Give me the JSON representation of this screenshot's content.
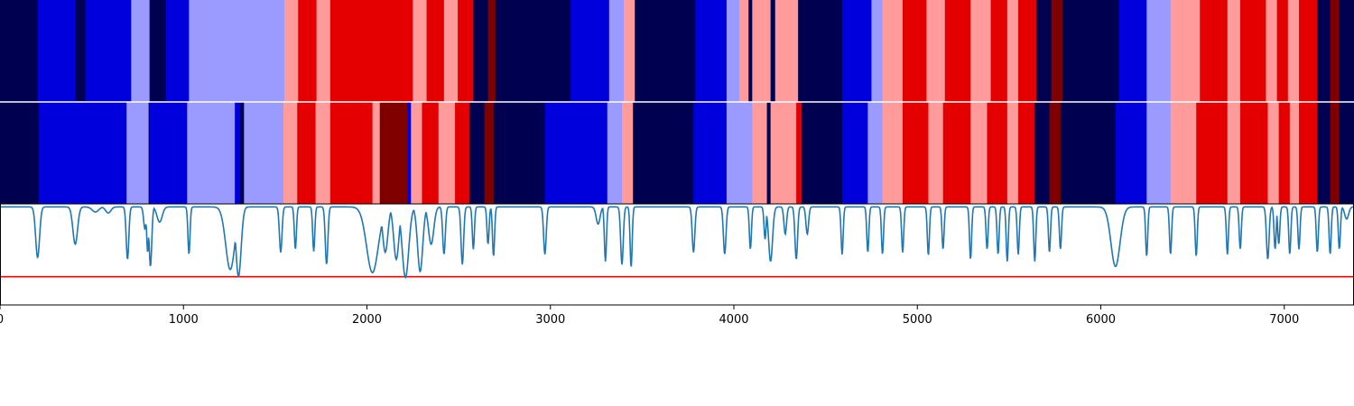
{
  "chart_data": {
    "type": "heatmap",
    "title": "",
    "xlabel": "",
    "ylabel": "",
    "xlim": [
      0,
      7380
    ],
    "x_ticks": [
      0,
      1000,
      2000,
      3000,
      4000,
      5000,
      6000,
      7000
    ],
    "x_tick_labels": [
      "0",
      "1000",
      "2000",
      "3000",
      "4000",
      "5000",
      "6000",
      "7000"
    ],
    "palette": {
      "0": "#000050",
      "1": "#0000dd",
      "2": "#9b9bff",
      "3": "#ff9b9b",
      "4": "#e40000",
      "5": "#800000"
    },
    "segment_rows": [
      {
        "name": "",
        "segments": [
          [
            0,
            205,
            0
          ],
          [
            205,
            410,
            1
          ],
          [
            410,
            465,
            0
          ],
          [
            465,
            715,
            1
          ],
          [
            715,
            815,
            2
          ],
          [
            815,
            905,
            0
          ],
          [
            905,
            1030,
            1
          ],
          [
            1030,
            1550,
            2
          ],
          [
            1550,
            1625,
            3
          ],
          [
            1625,
            1725,
            4
          ],
          [
            1725,
            1800,
            3
          ],
          [
            1800,
            2250,
            4
          ],
          [
            2250,
            2325,
            3
          ],
          [
            2325,
            2420,
            4
          ],
          [
            2420,
            2495,
            3
          ],
          [
            2495,
            2580,
            4
          ],
          [
            2580,
            2660,
            0
          ],
          [
            2660,
            2700,
            5
          ],
          [
            2700,
            3110,
            0
          ],
          [
            3110,
            3320,
            1
          ],
          [
            3320,
            3400,
            2
          ],
          [
            3400,
            3460,
            3
          ],
          [
            3460,
            3790,
            0
          ],
          [
            3790,
            3960,
            1
          ],
          [
            3960,
            4030,
            2
          ],
          [
            4030,
            4080,
            3
          ],
          [
            4080,
            4100,
            0
          ],
          [
            4100,
            4200,
            3
          ],
          [
            4200,
            4225,
            0
          ],
          [
            4225,
            4350,
            3
          ],
          [
            4350,
            4590,
            0
          ],
          [
            4590,
            4750,
            1
          ],
          [
            4750,
            4810,
            2
          ],
          [
            4810,
            4920,
            3
          ],
          [
            4920,
            5050,
            4
          ],
          [
            5050,
            5150,
            3
          ],
          [
            5150,
            5290,
            4
          ],
          [
            5290,
            5400,
            3
          ],
          [
            5400,
            5490,
            4
          ],
          [
            5490,
            5550,
            3
          ],
          [
            5550,
            5650,
            4
          ],
          [
            5650,
            5730,
            0
          ],
          [
            5730,
            5790,
            5
          ],
          [
            5790,
            6100,
            0
          ],
          [
            6100,
            6250,
            1
          ],
          [
            6250,
            6380,
            2
          ],
          [
            6380,
            6540,
            3
          ],
          [
            6540,
            6690,
            4
          ],
          [
            6690,
            6760,
            3
          ],
          [
            6760,
            6900,
            4
          ],
          [
            6900,
            6960,
            3
          ],
          [
            6960,
            7020,
            4
          ],
          [
            7020,
            7080,
            3
          ],
          [
            7080,
            7180,
            4
          ],
          [
            7180,
            7250,
            0
          ],
          [
            7250,
            7300,
            5
          ],
          [
            7300,
            7380,
            0
          ]
        ]
      },
      {
        "name": "",
        "segments": [
          [
            0,
            210,
            0
          ],
          [
            210,
            690,
            1
          ],
          [
            690,
            810,
            2
          ],
          [
            810,
            815,
            0
          ],
          [
            815,
            1020,
            1
          ],
          [
            1020,
            1280,
            2
          ],
          [
            1280,
            1310,
            1
          ],
          [
            1310,
            1330,
            0
          ],
          [
            1330,
            1545,
            2
          ],
          [
            1545,
            1620,
            3
          ],
          [
            1620,
            1720,
            4
          ],
          [
            1720,
            1800,
            3
          ],
          [
            1800,
            2030,
            4
          ],
          [
            2030,
            2070,
            3
          ],
          [
            2070,
            2220,
            5
          ],
          [
            2220,
            2240,
            1
          ],
          [
            2240,
            2300,
            3
          ],
          [
            2300,
            2390,
            4
          ],
          [
            2390,
            2480,
            3
          ],
          [
            2480,
            2560,
            4
          ],
          [
            2560,
            2640,
            0
          ],
          [
            2640,
            2690,
            5
          ],
          [
            2690,
            2970,
            0
          ],
          [
            2970,
            3310,
            1
          ],
          [
            3310,
            3390,
            2
          ],
          [
            3390,
            3450,
            3
          ],
          [
            3450,
            3780,
            0
          ],
          [
            3780,
            3960,
            1
          ],
          [
            3960,
            4100,
            2
          ],
          [
            4100,
            4180,
            3
          ],
          [
            4180,
            4200,
            0
          ],
          [
            4200,
            4340,
            3
          ],
          [
            4340,
            4370,
            4
          ],
          [
            4370,
            4590,
            0
          ],
          [
            4590,
            4730,
            1
          ],
          [
            4730,
            4810,
            2
          ],
          [
            4810,
            4920,
            3
          ],
          [
            4920,
            5060,
            4
          ],
          [
            5060,
            5140,
            3
          ],
          [
            5140,
            5290,
            4
          ],
          [
            5290,
            5380,
            3
          ],
          [
            5380,
            5490,
            4
          ],
          [
            5490,
            5550,
            3
          ],
          [
            5550,
            5640,
            4
          ],
          [
            5640,
            5720,
            0
          ],
          [
            5720,
            5780,
            5
          ],
          [
            5780,
            6080,
            0
          ],
          [
            6080,
            6250,
            1
          ],
          [
            6250,
            6380,
            2
          ],
          [
            6380,
            6520,
            3
          ],
          [
            6520,
            6690,
            4
          ],
          [
            6690,
            6760,
            3
          ],
          [
            6760,
            6910,
            4
          ],
          [
            6910,
            6970,
            3
          ],
          [
            6970,
            7030,
            4
          ],
          [
            7030,
            7080,
            3
          ],
          [
            7080,
            7180,
            4
          ],
          [
            7180,
            7250,
            0
          ],
          [
            7250,
            7300,
            5
          ],
          [
            7300,
            7380,
            0
          ]
        ]
      }
    ],
    "line_panel": {
      "ylim": [
        0,
        1
      ],
      "threshold": 0.28,
      "threshold_color": "#ff0000",
      "line_color": "#1f77b4",
      "baseline": 0.97,
      "dips": [
        [
          205,
          0.47,
          15
        ],
        [
          410,
          0.6,
          18
        ],
        [
          520,
          0.92,
          25
        ],
        [
          590,
          0.91,
          20
        ],
        [
          695,
          0.45,
          10
        ],
        [
          790,
          0.75,
          10
        ],
        [
          805,
          0.52,
          8
        ],
        [
          820,
          0.38,
          10
        ],
        [
          870,
          0.82,
          20
        ],
        [
          1030,
          0.5,
          8
        ],
        [
          1255,
          0.35,
          35
        ],
        [
          1300,
          0.28,
          20
        ],
        [
          1530,
          0.52,
          10
        ],
        [
          1610,
          0.55,
          8
        ],
        [
          1710,
          0.53,
          8
        ],
        [
          1780,
          0.4,
          10
        ],
        [
          2030,
          0.32,
          45
        ],
        [
          2100,
          0.52,
          20
        ],
        [
          2160,
          0.45,
          20
        ],
        [
          2210,
          0.27,
          25
        ],
        [
          2290,
          0.33,
          20
        ],
        [
          2350,
          0.6,
          20
        ],
        [
          2420,
          0.5,
          10
        ],
        [
          2520,
          0.4,
          10
        ],
        [
          2580,
          0.55,
          8
        ],
        [
          2660,
          0.6,
          8
        ],
        [
          2690,
          0.48,
          8
        ],
        [
          2970,
          0.5,
          10
        ],
        [
          3260,
          0.8,
          15
        ],
        [
          3300,
          0.43,
          8
        ],
        [
          3390,
          0.4,
          10
        ],
        [
          3440,
          0.37,
          8
        ],
        [
          3780,
          0.52,
          10
        ],
        [
          3950,
          0.5,
          10
        ],
        [
          4090,
          0.55,
          8
        ],
        [
          4170,
          0.65,
          8
        ],
        [
          4200,
          0.43,
          15
        ],
        [
          4280,
          0.7,
          10
        ],
        [
          4340,
          0.45,
          10
        ],
        [
          4400,
          0.7,
          10
        ],
        [
          4590,
          0.5,
          8
        ],
        [
          4730,
          0.52,
          8
        ],
        [
          4810,
          0.5,
          8
        ],
        [
          4920,
          0.52,
          8
        ],
        [
          5060,
          0.49,
          8
        ],
        [
          5140,
          0.55,
          8
        ],
        [
          5290,
          0.45,
          8
        ],
        [
          5380,
          0.55,
          8
        ],
        [
          5440,
          0.5,
          8
        ],
        [
          5490,
          0.43,
          8
        ],
        [
          5550,
          0.5,
          8
        ],
        [
          5640,
          0.43,
          8
        ],
        [
          5720,
          0.52,
          8
        ],
        [
          5780,
          0.55,
          8
        ],
        [
          6080,
          0.38,
          35
        ],
        [
          6250,
          0.48,
          8
        ],
        [
          6380,
          0.5,
          8
        ],
        [
          6520,
          0.48,
          8
        ],
        [
          6690,
          0.5,
          8
        ],
        [
          6760,
          0.55,
          8
        ],
        [
          6910,
          0.45,
          10
        ],
        [
          6950,
          0.55,
          8
        ],
        [
          6970,
          0.6,
          8
        ],
        [
          7030,
          0.5,
          8
        ],
        [
          7080,
          0.55,
          8
        ],
        [
          7180,
          0.52,
          8
        ],
        [
          7250,
          0.5,
          8
        ],
        [
          7300,
          0.55,
          8
        ],
        [
          7340,
          0.85,
          15
        ]
      ]
    }
  }
}
